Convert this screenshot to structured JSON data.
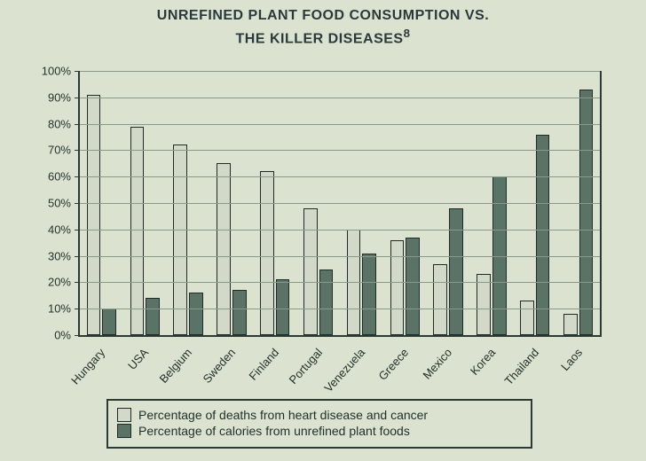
{
  "title_line1": "UNREFINED PLANT FOOD CONSUMPTION VS.",
  "title_line2": "THE KILLER DISEASES",
  "title_sup": "8",
  "chart": {
    "type": "bar",
    "categories": [
      "Hungary",
      "USA",
      "Belgium",
      "Sweden",
      "Finland",
      "Portugal",
      "Venezuela",
      "Greece",
      "Mexico",
      "Korea",
      "Thailand",
      "Laos"
    ],
    "series": [
      {
        "name": "deaths",
        "label": "Percentage of deaths from heart disease and cancer",
        "color": "#d3d9c8",
        "values": [
          91,
          79,
          72,
          65,
          62,
          48,
          40,
          36,
          27,
          23,
          13,
          8
        ]
      },
      {
        "name": "calories",
        "label": "Percentage of calories from unrefined plant foods",
        "color": "#5b7266",
        "values": [
          10,
          14,
          16,
          17,
          21,
          25,
          31,
          37,
          48,
          60,
          76,
          93
        ]
      }
    ],
    "ylim": [
      0,
      100
    ],
    "ytick_step": 10,
    "axis_color": "#2c3a36",
    "grid_color": "#8a9a88",
    "background_color": "#dce2d0",
    "title_fontsize": 16,
    "label_fontsize": 13,
    "bar_group_width": 0.68,
    "bar_gap": 0.04
  },
  "legend_items": [
    {
      "swatch": "#d3d9c8",
      "text": "Percentage of deaths from heart disease and cancer"
    },
    {
      "swatch": "#5b7266",
      "text": "Percentage of calories from unrefined plant foods"
    }
  ]
}
